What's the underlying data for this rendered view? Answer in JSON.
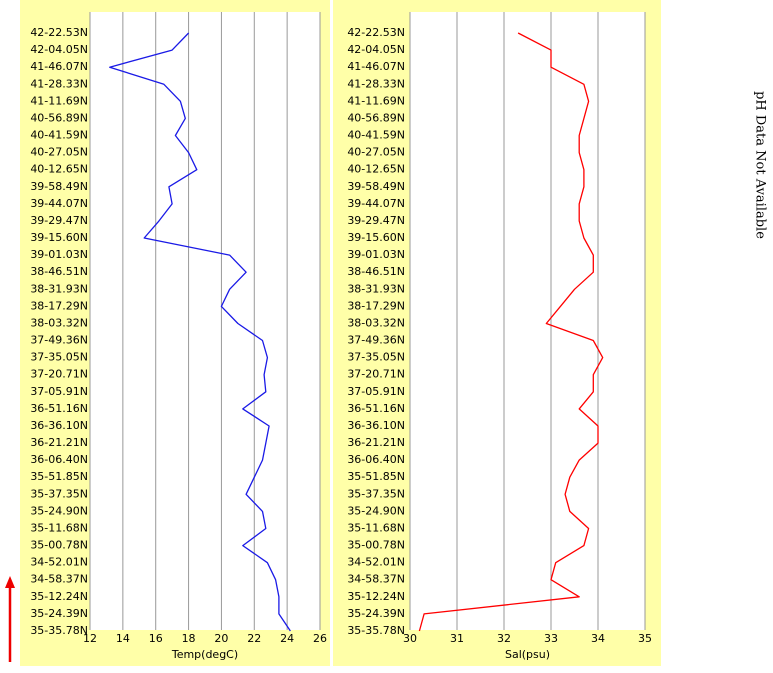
{
  "chart_data": [
    {
      "type": "line",
      "orientation": "horizontal",
      "x_label": "Temp(degC)",
      "categories": [
        "42-22.53N",
        "42-04.05N",
        "41-46.07N",
        "41-28.33N",
        "41-11.69N",
        "40-56.89N",
        "40-41.59N",
        "40-27.05N",
        "40-12.65N",
        "39-58.49N",
        "39-44.07N",
        "39-29.47N",
        "39-15.60N",
        "39-01.03N",
        "38-46.51N",
        "38-31.93N",
        "38-17.29N",
        "38-03.32N",
        "37-49.36N",
        "37-35.05N",
        "37-20.71N",
        "37-05.91N",
        "36-51.16N",
        "36-36.10N",
        "36-21.21N",
        "36-06.40N",
        "35-51.85N",
        "35-37.35N",
        "35-24.90N",
        "35-11.68N",
        "35-00.78N",
        "34-52.01N",
        "34-58.37N",
        "35-12.24N",
        "35-24.39N",
        "35-35.78N"
      ],
      "series": [
        {
          "name": "Temp",
          "color": "#1a1ae6",
          "values": [
            18.0,
            17.0,
            13.2,
            16.5,
            17.5,
            17.8,
            17.2,
            18.0,
            18.5,
            16.8,
            17.0,
            16.2,
            15.3,
            20.5,
            21.5,
            20.5,
            20.0,
            21.0,
            22.5,
            22.8,
            22.6,
            22.7,
            21.3,
            22.9,
            22.7,
            22.5,
            22.0,
            21.5,
            22.5,
            22.7,
            21.3,
            22.8,
            23.3,
            23.5,
            23.5,
            24.2
          ]
        }
      ],
      "xlim": [
        12,
        26
      ],
      "xticks": [
        12,
        14,
        16,
        18,
        20,
        22,
        24,
        26
      ],
      "grid": true
    },
    {
      "type": "line",
      "orientation": "horizontal",
      "x_label": "Sal(psu)",
      "categories": [
        "42-22.53N",
        "42-04.05N",
        "41-46.07N",
        "41-28.33N",
        "41-11.69N",
        "40-56.89N",
        "40-41.59N",
        "40-27.05N",
        "40-12.65N",
        "39-58.49N",
        "39-44.07N",
        "39-29.47N",
        "39-15.60N",
        "39-01.03N",
        "38-46.51N",
        "38-31.93N",
        "38-17.29N",
        "38-03.32N",
        "37-49.36N",
        "37-35.05N",
        "37-20.71N",
        "37-05.91N",
        "36-51.16N",
        "36-36.10N",
        "36-21.21N",
        "36-06.40N",
        "35-51.85N",
        "35-37.35N",
        "35-24.90N",
        "35-11.68N",
        "35-00.78N",
        "34-52.01N",
        "34-58.37N",
        "35-12.24N",
        "35-24.39N",
        "35-35.78N"
      ],
      "series": [
        {
          "name": "Sal",
          "color": "#ff0000",
          "values": [
            32.3,
            33.0,
            33.0,
            33.7,
            33.8,
            33.7,
            33.6,
            33.6,
            33.7,
            33.7,
            33.6,
            33.6,
            33.7,
            33.9,
            33.9,
            33.5,
            33.2,
            32.9,
            33.9,
            34.1,
            33.9,
            33.9,
            33.6,
            34.0,
            34.0,
            33.6,
            33.4,
            33.3,
            33.4,
            33.8,
            33.7,
            33.1,
            33.0,
            33.6,
            30.3,
            30.2
          ]
        }
      ],
      "xlim": [
        30,
        35
      ],
      "xticks": [
        30,
        31,
        32,
        33,
        34,
        35
      ],
      "grid": true
    }
  ],
  "annotation": "pH Data Not Available"
}
